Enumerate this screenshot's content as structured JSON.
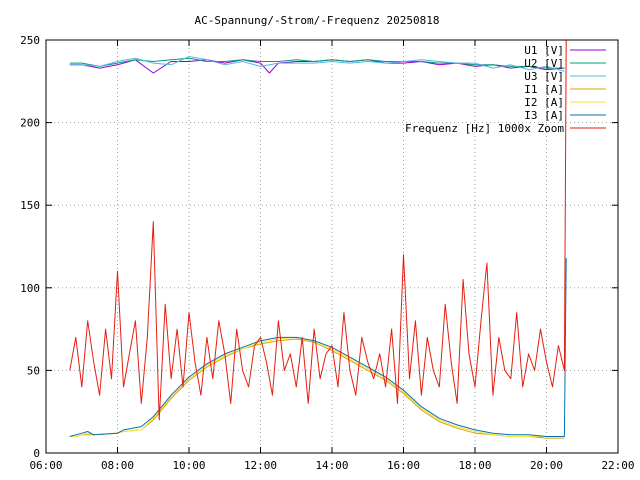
{
  "chart_data": {
    "type": "line",
    "title": "AC-Spannung/-Strom/-Frequenz 20250818",
    "xlabel": "",
    "ylabel": "",
    "xlim": [
      "06:00",
      "22:00"
    ],
    "ylim": [
      0,
      250
    ],
    "grid": true,
    "legend_position": "top-right",
    "x_ticks": [
      "06:00",
      "08:00",
      "10:00",
      "12:00",
      "14:00",
      "16:00",
      "18:00",
      "20:00",
      "22:00"
    ],
    "y_ticks": [
      0,
      50,
      100,
      150,
      200,
      250
    ],
    "series": [
      {
        "name": "U1 [V]",
        "color": "#9400d3",
        "x": [
          "06:40",
          "07:00",
          "07:30",
          "08:00",
          "08:30",
          "09:00",
          "09:30",
          "10:00",
          "10:30",
          "11:00",
          "11:30",
          "12:00",
          "12:15",
          "12:30",
          "13:00",
          "13:30",
          "14:00",
          "14:30",
          "15:00",
          "15:30",
          "16:00",
          "16:30",
          "17:00",
          "17:30",
          "18:00",
          "18:30",
          "19:00",
          "19:30",
          "20:00",
          "20:30"
        ],
        "values": [
          235,
          235,
          233,
          235,
          238,
          230,
          237,
          237,
          238,
          236,
          238,
          236,
          230,
          236,
          237,
          237,
          238,
          237,
          238,
          236,
          236,
          237,
          235,
          236,
          234,
          235,
          233,
          234,
          232,
          233
        ]
      },
      {
        "name": "U2 [V]",
        "color": "#009e73",
        "x": [
          "06:40",
          "07:00",
          "07:30",
          "08:00",
          "08:30",
          "09:00",
          "09:30",
          "10:00",
          "10:30",
          "11:00",
          "11:30",
          "12:00",
          "12:30",
          "13:00",
          "13:30",
          "14:00",
          "14:30",
          "15:00",
          "15:30",
          "16:00",
          "16:30",
          "17:00",
          "17:30",
          "18:00",
          "18:30",
          "19:00",
          "19:30",
          "20:00",
          "20:30"
        ],
        "values": [
          236,
          236,
          234,
          236,
          238,
          237,
          238,
          239,
          237,
          237,
          238,
          237,
          237,
          238,
          237,
          238,
          237,
          238,
          237,
          237,
          237,
          236,
          236,
          235,
          235,
          234,
          234,
          233,
          233
        ]
      },
      {
        "name": "U3 [V]",
        "color": "#56b4e9",
        "x": [
          "06:40",
          "07:00",
          "07:30",
          "08:00",
          "08:30",
          "09:00",
          "09:30",
          "10:00",
          "10:30",
          "11:00",
          "11:30",
          "12:00",
          "12:30",
          "13:00",
          "13:30",
          "14:00",
          "14:30",
          "15:00",
          "15:30",
          "16:00",
          "16:30",
          "17:00",
          "17:30",
          "18:00",
          "18:30",
          "19:00",
          "19:30",
          "20:00",
          "20:30"
        ],
        "values": [
          235,
          235,
          234,
          237,
          239,
          236,
          235,
          240,
          238,
          235,
          237,
          234,
          236,
          236,
          236,
          237,
          236,
          237,
          236,
          237,
          238,
          237,
          236,
          236,
          233,
          235,
          232,
          234,
          231
        ]
      },
      {
        "name": "I1 [A]",
        "color": "#e69f00",
        "x": [
          "06:40",
          "06:50",
          "07:00",
          "07:10",
          "07:20",
          "08:00",
          "08:10",
          "08:40",
          "09:00",
          "09:30",
          "10:00",
          "10:30",
          "11:00",
          "11:30",
          "12:00",
          "12:30",
          "13:00",
          "13:30",
          "14:00",
          "14:30",
          "15:00",
          "15:30",
          "16:00",
          "16:30",
          "17:00",
          "17:30",
          "18:00",
          "18:30",
          "19:00",
          "19:30",
          "20:00",
          "20:20",
          "20:30"
        ],
        "values": [
          10,
          10,
          11,
          11,
          11,
          12,
          13,
          14,
          20,
          33,
          44,
          52,
          58,
          63,
          66,
          68,
          69,
          67,
          62,
          56,
          50,
          44,
          36,
          26,
          19,
          15,
          12,
          11,
          10,
          10,
          9,
          9,
          9
        ]
      },
      {
        "name": "I2 [A]",
        "color": "#f0e442",
        "x": [
          "06:40",
          "06:50",
          "07:00",
          "07:10",
          "07:20",
          "08:00",
          "08:10",
          "08:40",
          "09:00",
          "09:30",
          "10:00",
          "10:30",
          "11:00",
          "11:30",
          "12:00",
          "12:30",
          "13:00",
          "13:30",
          "14:00",
          "14:30",
          "15:00",
          "15:30",
          "16:00",
          "16:30",
          "17:00",
          "17:30",
          "18:00",
          "18:30",
          "19:00",
          "19:30",
          "20:00",
          "20:20",
          "20:30"
        ],
        "values": [
          10,
          10,
          11,
          12,
          11,
          12,
          13,
          14,
          21,
          34,
          45,
          53,
          59,
          63,
          67,
          69,
          70,
          68,
          63,
          57,
          51,
          45,
          37,
          27,
          20,
          16,
          13,
          11,
          10,
          10,
          10,
          10,
          10
        ]
      },
      {
        "name": "I3 [A]",
        "color": "#0072b2",
        "x": [
          "06:40",
          "06:50",
          "07:00",
          "07:10",
          "07:20",
          "08:00",
          "08:10",
          "08:40",
          "09:00",
          "09:30",
          "10:00",
          "10:30",
          "11:00",
          "11:30",
          "12:00",
          "12:30",
          "13:00",
          "13:30",
          "14:00",
          "14:30",
          "15:00",
          "15:30",
          "16:00",
          "16:30",
          "17:00",
          "17:30",
          "18:00",
          "18:30",
          "19:00",
          "19:30",
          "20:00",
          "20:20",
          "20:30",
          "20:33"
        ],
        "values": [
          10,
          11,
          12,
          13,
          11,
          12,
          14,
          16,
          22,
          35,
          46,
          54,
          60,
          64,
          68,
          70,
          70,
          68,
          64,
          58,
          52,
          46,
          38,
          28,
          21,
          17,
          14,
          12,
          11,
          11,
          10,
          10,
          10,
          118
        ]
      },
      {
        "name": "Frequenz [Hz] 1000x Zoom",
        "color": "#e51e10",
        "x": [
          "06:40",
          "06:50",
          "07:00",
          "07:10",
          "07:20",
          "07:30",
          "07:40",
          "07:50",
          "08:00",
          "08:10",
          "08:20",
          "08:30",
          "08:40",
          "08:50",
          "09:00",
          "09:10",
          "09:20",
          "09:30",
          "09:40",
          "09:50",
          "10:00",
          "10:10",
          "10:20",
          "10:30",
          "10:40",
          "10:50",
          "11:00",
          "11:10",
          "11:20",
          "11:30",
          "11:40",
          "11:50",
          "12:00",
          "12:10",
          "12:20",
          "12:30",
          "12:40",
          "12:50",
          "13:00",
          "13:10",
          "13:20",
          "13:30",
          "13:40",
          "13:50",
          "14:00",
          "14:10",
          "14:20",
          "14:30",
          "14:40",
          "14:50",
          "15:00",
          "15:10",
          "15:20",
          "15:30",
          "15:40",
          "15:50",
          "16:00",
          "16:10",
          "16:20",
          "16:30",
          "16:40",
          "16:50",
          "17:00",
          "17:10",
          "17:20",
          "17:30",
          "17:40",
          "17:50",
          "18:00",
          "18:10",
          "18:20",
          "18:30",
          "18:40",
          "18:50",
          "19:00",
          "19:10",
          "19:20",
          "19:30",
          "19:40",
          "19:50",
          "20:00",
          "20:10",
          "20:20",
          "20:30",
          "20:33"
        ],
        "values": [
          50,
          70,
          40,
          80,
          55,
          35,
          75,
          45,
          110,
          40,
          60,
          80,
          30,
          70,
          140,
          20,
          90,
          45,
          75,
          40,
          85,
          55,
          35,
          70,
          45,
          80,
          60,
          30,
          75,
          50,
          40,
          65,
          70,
          55,
          35,
          80,
          50,
          60,
          40,
          70,
          30,
          75,
          45,
          60,
          65,
          40,
          85,
          50,
          35,
          70,
          55,
          45,
          60,
          40,
          75,
          30,
          120,
          45,
          80,
          35,
          70,
          50,
          40,
          90,
          55,
          30,
          105,
          60,
          40,
          80,
          115,
          35,
          70,
          50,
          45,
          85,
          40,
          60,
          50,
          75,
          55,
          40,
          65,
          50,
          250
        ]
      }
    ]
  }
}
